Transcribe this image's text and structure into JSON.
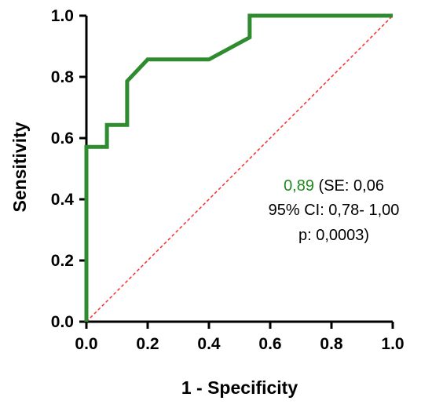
{
  "chart_data": {
    "type": "line",
    "title": "",
    "xlabel": "1 - Specificity",
    "ylabel": "Sensitivity",
    "xlim": [
      0.0,
      1.0
    ],
    "ylim": [
      0.0,
      1.0
    ],
    "xticks": [
      "0.0",
      "0.2",
      "0.4",
      "0.6",
      "0.8",
      "1.0"
    ],
    "yticks": [
      "0.0",
      "0.2",
      "0.4",
      "0.6",
      "0.8",
      "1.0"
    ],
    "grid": false,
    "series": [
      {
        "color": "#2e8b2e",
        "style": "solid",
        "points": [
          [
            0.0,
            0.0
          ],
          [
            0.0,
            0.571
          ],
          [
            0.067,
            0.571
          ],
          [
            0.067,
            0.643
          ],
          [
            0.133,
            0.643
          ],
          [
            0.133,
            0.786
          ],
          [
            0.2,
            0.857
          ],
          [
            0.4,
            0.857
          ],
          [
            0.533,
            0.929
          ],
          [
            0.533,
            1.0
          ],
          [
            1.0,
            1.0
          ]
        ]
      },
      {
        "color": "#ff2a2a",
        "style": "dashed",
        "points": [
          [
            0.0,
            0.0
          ],
          [
            1.0,
            1.0
          ]
        ]
      }
    ],
    "annotation": {
      "auc": "0,89",
      "line1_rest": " (SE: 0,06",
      "line2": "95% CI: 0,78- 1,00",
      "line3": "p: 0,0003)",
      "auc_color": "#1f8a1f"
    }
  }
}
